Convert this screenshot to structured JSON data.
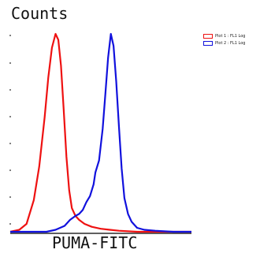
{
  "chart_data": {
    "type": "line",
    "ylabel": "Counts",
    "xlabel": "PUMA-FITC",
    "xscale": "log",
    "grid": false,
    "legend_position": "top-right",
    "xlim": [
      0,
      100
    ],
    "ylim": [
      0,
      100
    ],
    "series": [
      {
        "name": "Plot 1 : FL1 Log",
        "color": "#ee1111",
        "x": [
          0,
          5,
          9,
          13,
          16,
          19,
          21,
          23,
          25,
          26.5,
          28,
          29.5,
          31,
          32.5,
          34,
          36,
          38,
          41,
          45,
          50,
          55,
          60,
          70,
          80,
          90,
          100
        ],
        "y": [
          0,
          1,
          4,
          16,
          33,
          58,
          78,
          93,
          100,
          97,
          84,
          62,
          38,
          21,
          12,
          8,
          6,
          4,
          2.5,
          1.5,
          1,
          0.5,
          0,
          0,
          0,
          0
        ]
      },
      {
        "name": "Plot 2 : FL1 Log",
        "color": "#1111dd",
        "x": [
          0,
          20,
          25,
          30,
          33,
          36,
          38,
          40,
          42,
          44,
          46,
          47,
          49,
          51,
          52.5,
          54,
          55.5,
          57,
          58.5,
          60,
          61.5,
          63,
          65,
          67,
          70,
          74,
          80,
          90,
          100
        ],
        "y": [
          0,
          0,
          1,
          3,
          6,
          8,
          9,
          11,
          15,
          18,
          24,
          30,
          36,
          52,
          70,
          88,
          100,
          94,
          76,
          53,
          32,
          17,
          9,
          5,
          2,
          1,
          0.5,
          0,
          0
        ]
      }
    ]
  }
}
